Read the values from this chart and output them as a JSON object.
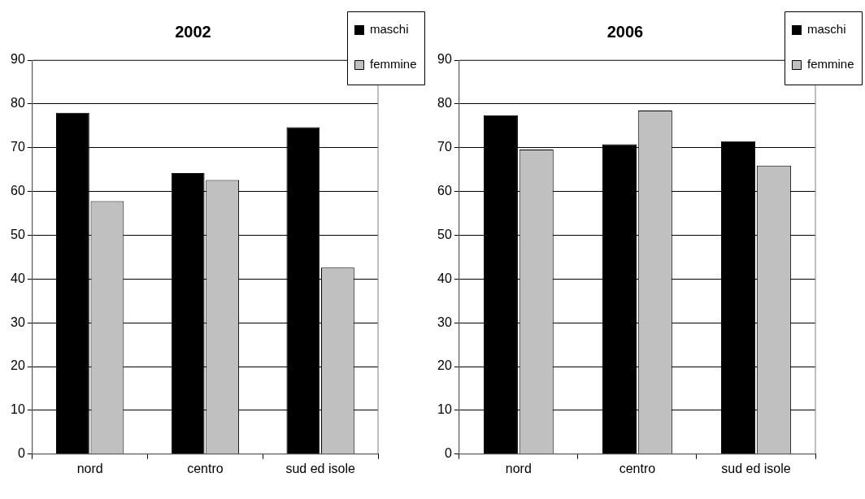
{
  "chart_data": [
    {
      "type": "bar",
      "title": "2002",
      "categories": [
        "nord",
        "centro",
        "sud ed isole"
      ],
      "series": [
        {
          "name": "maschi",
          "color": "#000000",
          "values": [
            78,
            64.2,
            74.7
          ]
        },
        {
          "name": "femmine",
          "color": "#c0c0c0",
          "values": [
            57.8,
            62.6,
            42.6
          ]
        }
      ],
      "ylim": [
        0,
        90
      ],
      "yticks": [
        0,
        10,
        20,
        30,
        40,
        50,
        60,
        70,
        80,
        90
      ],
      "grid": "y",
      "legend": "top right"
    },
    {
      "type": "bar",
      "title": "2006",
      "categories": [
        "nord",
        "centro",
        "sud ed isole"
      ],
      "series": [
        {
          "name": "maschi",
          "color": "#000000",
          "values": [
            77.4,
            70.8,
            71.5
          ]
        },
        {
          "name": "femmine",
          "color": "#c0c0c0",
          "values": [
            69.6,
            78.5,
            65.9
          ]
        }
      ],
      "ylim": [
        0,
        90
      ],
      "yticks": [
        0,
        10,
        20,
        30,
        40,
        50,
        60,
        70,
        80,
        90
      ],
      "grid": "y",
      "legend": "top right"
    }
  ]
}
